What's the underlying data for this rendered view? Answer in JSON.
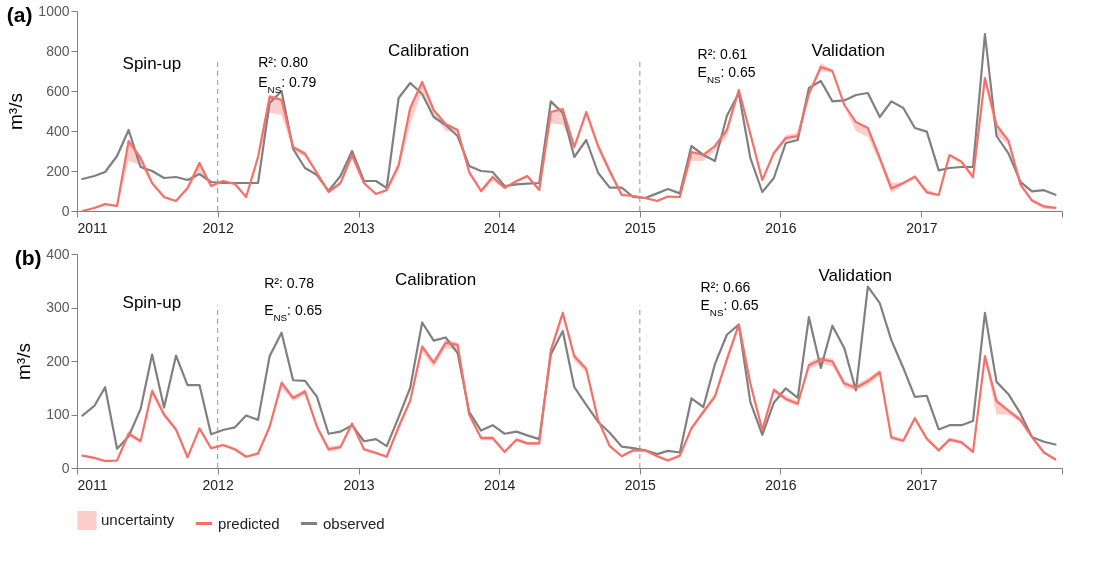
{
  "chart_data": [
    {
      "type": "line",
      "title": "(a)",
      "ylabel": "m³/s",
      "xlim": [
        "2011-01-01",
        "2018-01-01"
      ],
      "xticks": [
        "2011",
        "2012",
        "2013",
        "2014",
        "2015",
        "2016",
        "2017",
        {
          "value": "2018",
          "label": null
        }
      ],
      "ylim": [
        0,
        1000
      ],
      "yticks": [
        0,
        200,
        400,
        600,
        800,
        1000
      ],
      "grid": false,
      "legend": false,
      "x": [
        "2011-01-15",
        "2011-02-15",
        "2011-03-15",
        "2011-04-15",
        "2011-05-15",
        "2011-06-15",
        "2011-07-15",
        "2011-08-15",
        "2011-09-15",
        "2011-10-15",
        "2011-11-15",
        "2011-12-15",
        "2012-01-15",
        "2012-02-15",
        "2012-03-15",
        "2012-04-15",
        "2012-05-15",
        "2012-06-15",
        "2012-07-15",
        "2012-08-15",
        "2012-09-15",
        "2012-10-15",
        "2012-11-15",
        "2012-12-15",
        "2013-01-15",
        "2013-02-15",
        "2013-03-15",
        "2013-04-15",
        "2013-05-15",
        "2013-06-15",
        "2013-07-15",
        "2013-08-15",
        "2013-09-15",
        "2013-10-15",
        "2013-11-15",
        "2013-12-15",
        "2014-01-15",
        "2014-02-15",
        "2014-03-15",
        "2014-04-15",
        "2014-05-15",
        "2014-06-15",
        "2014-07-15",
        "2014-08-15",
        "2014-09-15",
        "2014-10-15",
        "2014-11-15",
        "2014-12-15",
        "2015-01-15",
        "2015-02-15",
        "2015-03-15",
        "2015-04-15",
        "2015-05-15",
        "2015-06-15",
        "2015-07-15",
        "2015-08-15",
        "2015-09-15",
        "2015-10-15",
        "2015-11-15",
        "2015-12-15",
        "2016-01-15",
        "2016-02-15",
        "2016-03-15",
        "2016-04-15",
        "2016-05-15",
        "2016-06-15",
        "2016-07-15",
        "2016-08-15",
        "2016-09-15",
        "2016-10-15",
        "2016-11-15",
        "2016-12-15",
        "2017-01-15",
        "2017-02-15",
        "2017-03-15",
        "2017-04-15",
        "2017-05-15",
        "2017-06-15",
        "2017-07-15",
        "2017-08-15",
        "2017-09-15",
        "2017-10-15",
        "2017-11-15",
        "2017-12-15"
      ],
      "series": [
        {
          "color": "#f4716a",
          "lower": [
            0,
            10,
            25,
            20,
            250,
            230,
            130,
            60,
            45,
            105,
            200,
            120,
            140,
            130,
            65,
            260,
            490,
            480,
            300,
            270,
            180,
            90,
            130,
            260,
            130,
            80,
            95,
            200,
            430,
            600,
            480,
            400,
            390,
            180,
            90,
            150,
            110,
            140,
            165,
            100,
            440,
            430,
            310,
            470,
            300,
            180,
            75,
            70,
            60,
            45,
            68,
            65,
            250,
            250,
            300,
            370,
            590,
            375,
            150,
            280,
            350,
            365,
            580,
            700,
            690,
            520,
            400,
            370,
            240,
            90,
            130,
            160,
            85,
            75,
            270,
            235,
            160,
            640,
            380,
            330,
            120,
            45,
            10,
            10
          ],
          "upper": [
            5,
            20,
            40,
            30,
            355,
            270,
            145,
            75,
            55,
            120,
            245,
            130,
            155,
            140,
            75,
            275,
            580,
            565,
            325,
            300,
            195,
            100,
            145,
            290,
            145,
            90,
            110,
            240,
            520,
            650,
            510,
            440,
            410,
            200,
            110,
            175,
            120,
            155,
            180,
            110,
            500,
            515,
            330,
            500,
            330,
            210,
            90,
            80,
            70,
            55,
            75,
            75,
            300,
            290,
            330,
            410,
            610,
            400,
            160,
            295,
            380,
            390,
            590,
            740,
            705,
            535,
            450,
            420,
            270,
            140,
            145,
            180,
            110,
            85,
            285,
            250,
            175,
            670,
            435,
            355,
            140,
            60,
            30,
            20
          ],
          "values": [
            0,
            15,
            35,
            25,
            350,
            265,
            140,
            70,
            50,
            115,
            240,
            125,
            150,
            135,
            70,
            270,
            572,
            555,
            320,
            285,
            190,
            95,
            140,
            280,
            140,
            85,
            105,
            230,
            515,
            645,
            505,
            435,
            405,
            195,
            100,
            170,
            115,
            150,
            175,
            105,
            495,
            510,
            320,
            495,
            325,
            200,
            80,
            75,
            65,
            50,
            72,
            70,
            295,
            280,
            325,
            405,
            605,
            385,
            155,
            290,
            365,
            375,
            585,
            720,
            700,
            530,
            445,
            415,
            265,
            112,
            140,
            172,
            93,
            80,
            280,
            247,
            170,
            665,
            430,
            352,
            133,
            52,
            23,
            16
          ]
        },
        {
          "color": "#808080",
          "values": [
            160,
            175,
            195,
            275,
            405,
            220,
            200,
            165,
            170,
            155,
            185,
            145,
            140,
            140,
            140,
            140,
            540,
            600,
            310,
            215,
            180,
            100,
            175,
            300,
            150,
            150,
            115,
            565,
            640,
            585,
            470,
            430,
            375,
            225,
            200,
            195,
            125,
            133,
            137,
            140,
            548,
            490,
            270,
            355,
            190,
            117,
            117,
            70,
            65,
            88,
            110,
            88,
            325,
            280,
            250,
            475,
            590,
            265,
            95,
            165,
            340,
            355,
            615,
            650,
            548,
            553,
            580,
            590,
            470,
            548,
            515,
            415,
            397,
            203,
            215,
            220,
            220,
            885,
            375,
            288,
            146,
            98,
            104,
            81
          ]
        }
      ],
      "ref_lines": [
        {
          "axis": "x",
          "value": "2012-01-01",
          "color": "#a6a6a6",
          "line_style": "dashed"
        },
        {
          "axis": "x",
          "value": "2015-01-01",
          "color": "#a6a6a6",
          "line_style": "dashed"
        }
      ],
      "annotations": [
        "Spin-up",
        "Calibration",
        "Validation",
        "R²:  0.80",
        "E$_{NS}$: 0.79",
        "R²:  0.61",
        "E$_{NS}$: 0.65"
      ]
    },
    {
      "type": "line",
      "title": "(b)",
      "ylabel": "m³/s",
      "xlim": [
        "2011-01-01",
        "2018-01-01"
      ],
      "xticks": [
        "2011",
        "2012",
        "2013",
        "2014",
        "2015",
        "2016",
        "2017",
        {
          "value": "2018",
          "label": null
        }
      ],
      "ylim": [
        0,
        400
      ],
      "yticks": [
        0,
        100,
        200,
        300,
        400
      ],
      "grid": false,
      "legend": "bottom",
      "x": [
        "2011-01-15",
        "2011-02-15",
        "2011-03-15",
        "2011-04-15",
        "2011-05-15",
        "2011-06-15",
        "2011-07-15",
        "2011-08-15",
        "2011-09-15",
        "2011-10-15",
        "2011-11-15",
        "2011-12-15",
        "2012-01-15",
        "2012-02-15",
        "2012-03-15",
        "2012-04-15",
        "2012-05-15",
        "2012-06-15",
        "2012-07-15",
        "2012-08-15",
        "2012-09-15",
        "2012-10-15",
        "2012-11-15",
        "2012-12-15",
        "2013-01-15",
        "2013-02-15",
        "2013-03-15",
        "2013-04-15",
        "2013-05-15",
        "2013-06-15",
        "2013-07-15",
        "2013-08-15",
        "2013-09-15",
        "2013-10-15",
        "2013-11-15",
        "2013-12-15",
        "2014-01-15",
        "2014-02-15",
        "2014-03-15",
        "2014-04-15",
        "2014-05-15",
        "2014-06-15",
        "2014-07-15",
        "2014-08-15",
        "2014-09-15",
        "2014-10-15",
        "2014-11-15",
        "2014-12-15",
        "2015-01-15",
        "2015-02-15",
        "2015-03-15",
        "2015-04-15",
        "2015-05-15",
        "2015-06-15",
        "2015-07-15",
        "2015-08-15",
        "2015-09-15",
        "2015-10-15",
        "2015-11-15",
        "2015-12-15",
        "2016-01-15",
        "2016-02-15",
        "2016-03-15",
        "2016-04-15",
        "2016-05-15",
        "2016-06-15",
        "2016-07-15",
        "2016-08-15",
        "2016-09-15",
        "2016-10-15",
        "2016-11-15",
        "2016-12-15",
        "2017-01-15",
        "2017-02-15",
        "2017-03-15",
        "2017-04-15",
        "2017-05-15",
        "2017-06-15",
        "2017-07-15",
        "2017-08-15",
        "2017-09-15",
        "2017-10-15",
        "2017-11-15",
        "2017-12-15"
      ],
      "series": [
        {
          "name": "predicted",
          "color": "#f4716a",
          "lower": [
            21,
            17,
            11,
            12,
            60,
            47,
            137,
            95,
            68,
            18,
            70,
            34,
            40,
            32,
            19,
            24,
            72,
            150,
            125,
            137,
            72,
            30,
            35,
            78,
            32,
            25,
            19,
            70,
            120,
            217,
            188,
            225,
            220,
            95,
            52,
            52,
            28,
            50,
            43,
            43,
            212,
            282,
            200,
            178,
            85,
            38,
            20,
            30,
            30,
            20,
            12,
            20,
            70,
            100,
            128,
            195,
            262,
            150,
            68,
            140,
            125,
            115,
            185,
            195,
            190,
            150,
            145,
            155,
            172,
            53,
            48,
            88,
            50,
            30,
            50,
            45,
            27,
            200,
            100,
            100,
            85,
            55,
            26,
            14
          ],
          "upper": [
            25,
            21,
            15,
            16,
            70,
            53,
            150,
            104,
            76,
            23,
            77,
            40,
            45,
            38,
            24,
            30,
            80,
            165,
            135,
            148,
            80,
            40,
            43,
            86,
            38,
            31,
            24,
            82,
            130,
            232,
            202,
            240,
            235,
            105,
            60,
            60,
            33,
            56,
            49,
            49,
            224,
            295,
            214,
            190,
            93,
            45,
            25,
            36,
            36,
            25,
            17,
            26,
            78,
            110,
            138,
            208,
            272,
            163,
            75,
            150,
            135,
            125,
            198,
            208,
            205,
            162,
            155,
            168,
            184,
            61,
            55,
            97,
            58,
            36,
            57,
            52,
            33,
            213,
            130,
            111,
            95,
            61,
            32,
            19
          ],
          "values": [
            23,
            19,
            13,
            14,
            64,
            50,
            144,
            100,
            72,
            20,
            74,
            37,
            43,
            35,
            21,
            27,
            77,
            159,
            131,
            143,
            77,
            35,
            39,
            83,
            35,
            28,
            21,
            77,
            126,
            227,
            197,
            234,
            230,
            100,
            56,
            56,
            30,
            53,
            46,
            46,
            220,
            290,
            209,
            185,
            89,
            41,
            22,
            33,
            33,
            22,
            14,
            23,
            74,
            105,
            134,
            203,
            268,
            158,
            71,
            146,
            129,
            120,
            192,
            203,
            199,
            158,
            150,
            162,
            179,
            57,
            51,
            93,
            55,
            33,
            53,
            48,
            30,
            209,
            125,
            107,
            90,
            58,
            29,
            16
          ]
        },
        {
          "name": "observed",
          "color": "#808080",
          "values": [
            98,
            116,
            151,
            36,
            59,
            110,
            212,
            113,
            210,
            155,
            155,
            63,
            71,
            76,
            98,
            90,
            209,
            253,
            164,
            163,
            133,
            64,
            68,
            80,
            50,
            54,
            41,
            95,
            150,
            272,
            238,
            244,
            215,
            105,
            70,
            80,
            64,
            68,
            61,
            54,
            212,
            256,
            151,
            118,
            86,
            66,
            40,
            37,
            33,
            26,
            32,
            29,
            130,
            114,
            194,
            249,
            268,
            123,
            62,
            122,
            149,
            131,
            282,
            187,
            266,
            224,
            145,
            339,
            308,
            239,
            187,
            133,
            135,
            72,
            80,
            80,
            88,
            290,
            161,
            138,
            102,
            58,
            49,
            44
          ]
        }
      ],
      "ref_lines": [
        {
          "axis": "x",
          "value": "2012-01-01",
          "color": "#a6a6a6",
          "line_style": "dashed"
        },
        {
          "axis": "x",
          "value": "2015-01-01",
          "color": "#a6a6a6",
          "line_style": "dashed"
        }
      ],
      "annotations": [
        "Spin-up",
        "Calibration",
        "Validation",
        "R²:  0.78",
        "E$_{NS}$: 0.65",
        "R²:  0.66",
        "E$_{NS}$: 0.65",
        "uncertainty"
      ]
    }
  ]
}
